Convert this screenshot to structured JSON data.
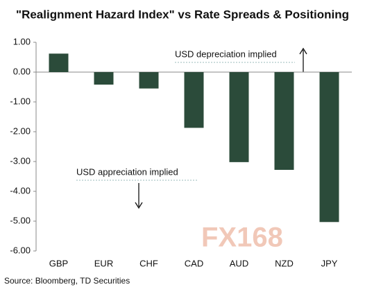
{
  "chart_data": {
    "type": "bar",
    "title": "\"Realignment Hazard Index\" vs Rate Spreads & Positioning",
    "categories": [
      "GBP",
      "EUR",
      "CHF",
      "CAD",
      "AUD",
      "NZD",
      "JPY"
    ],
    "values": [
      0.62,
      -0.42,
      -0.55,
      -1.87,
      -3.02,
      -3.28,
      -5.03
    ],
    "color": "#2b4b3a",
    "ylim": [
      -6,
      1
    ],
    "yticks": [
      {
        "value": 1,
        "label": "1.00"
      },
      {
        "value": 0,
        "label": "0.00"
      },
      {
        "value": -1,
        "label": "-1.00"
      },
      {
        "value": -2,
        "label": "-2.00"
      },
      {
        "value": -3,
        "label": "-3.00"
      },
      {
        "value": -4,
        "label": "-4.00"
      },
      {
        "value": -5,
        "label": "-5.00"
      },
      {
        "value": -6,
        "label": "-6.00"
      }
    ],
    "annotations": [
      "USD depreciation implied",
      "USD appreciation implied"
    ],
    "watermark": "FX168",
    "source": "Source: Bloomberg, TD Securities"
  }
}
